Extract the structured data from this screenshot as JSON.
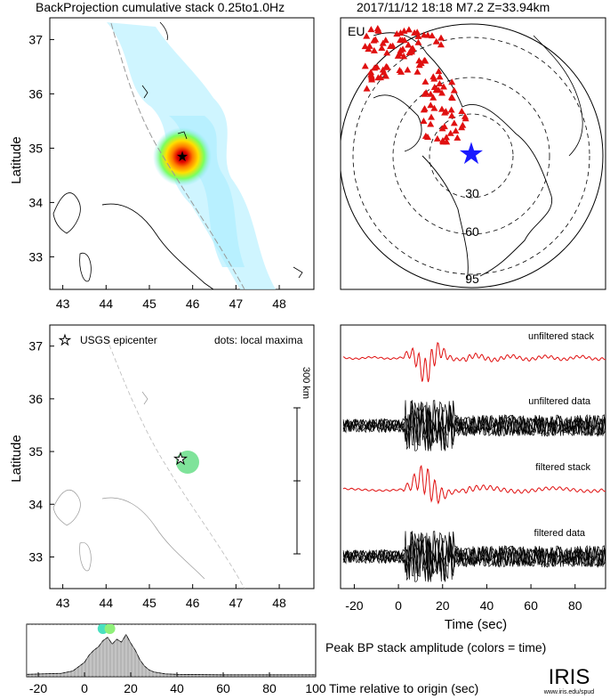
{
  "header": {
    "title": "BackProjection cumulative stack 0.25to1.0Hz",
    "event_info": "2017/11/12 18:18   M7.2  Z=33.94km"
  },
  "map_top": {
    "ylabel": "Latitude",
    "yticks": [
      "37",
      "36",
      "35",
      "34",
      "33"
    ],
    "xticks": [
      "43",
      "44",
      "45",
      "46",
      "47",
      "48"
    ]
  },
  "globe": {
    "region_label": "EU",
    "distance_labels": [
      "30",
      "60",
      "95"
    ],
    "station_color": "#e01010",
    "epicenter_color": "#1a1aff"
  },
  "map_bottom": {
    "legend_star": "USGS epicenter",
    "legend_dots": "dots: local maxima",
    "scalebar_label": "300 km",
    "ylabel": "Latitude",
    "yticks": [
      "37",
      "36",
      "35",
      "34",
      "33"
    ],
    "xticks": [
      "43",
      "44",
      "45",
      "46",
      "47",
      "48"
    ]
  },
  "waveforms": {
    "trace_labels": [
      "unfiltered stack",
      "unfiltered data",
      "filtered stack",
      "filtered data"
    ],
    "xlabel": "Time (sec)",
    "xticks": [
      "-20",
      "0",
      "20",
      "40",
      "60",
      "80"
    ]
  },
  "amplitude": {
    "title": "Peak BP stack amplitude (colors = time)",
    "xlabel": "Time relative to origin (sec)",
    "xticks": [
      "-20",
      "0",
      "20",
      "40",
      "60",
      "80",
      "100"
    ]
  },
  "logo": {
    "text": "IRIS",
    "url": "www.iris.edu/spud"
  },
  "chart_data": [
    {
      "type": "heatmap",
      "title": "BackProjection cumulative stack 0.25to1.0Hz",
      "xlabel": "",
      "ylabel": "Latitude",
      "xlim": [
        42.7,
        48.8
      ],
      "ylim": [
        32.4,
        37.4
      ],
      "peak": {
        "x": 45.8,
        "y": 34.95
      },
      "epicenter": {
        "x": 45.8,
        "y": 34.95
      }
    },
    {
      "type": "scatter",
      "xlabel": "",
      "ylabel": "Latitude",
      "xlim": [
        42.7,
        48.8
      ],
      "ylim": [
        32.4,
        37.4
      ],
      "epicenter": {
        "x": 45.75,
        "y": 34.93
      },
      "local_maxima": [
        {
          "x": 45.95,
          "y": 34.85
        }
      ]
    },
    {
      "type": "line",
      "xlabel": "Time (sec)",
      "xlim": [
        -25,
        95
      ],
      "traces": [
        "unfiltered stack",
        "unfiltered data",
        "filtered stack",
        "filtered data"
      ]
    },
    {
      "type": "area",
      "title": "Peak BP stack amplitude (colors = time)",
      "xlabel": "Time relative to origin (sec)",
      "xlim": [
        -25,
        100
      ],
      "x": [
        -25,
        -10,
        -5,
        0,
        2,
        4,
        6,
        8,
        10,
        12,
        14,
        16,
        18,
        20,
        22,
        24,
        26,
        28,
        30,
        35,
        40,
        60,
        100
      ],
      "y": [
        0.05,
        0.07,
        0.12,
        0.3,
        0.45,
        0.55,
        0.62,
        0.75,
        0.82,
        0.68,
        0.78,
        0.72,
        0.88,
        0.7,
        0.55,
        0.35,
        0.22,
        0.14,
        0.1,
        0.06,
        0.05,
        0.04,
        0.04
      ],
      "maxima_times": [
        8,
        11
      ]
    }
  ]
}
